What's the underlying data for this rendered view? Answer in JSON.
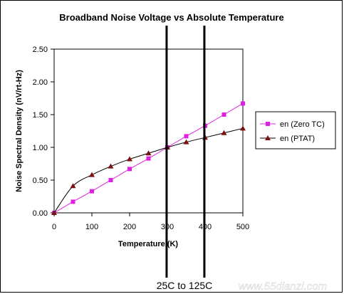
{
  "chart_data": {
    "type": "line",
    "title": "Broadband Noise Voltage vs Absolute Temperature",
    "xlabel": "Temperature (K)",
    "ylabel": "Noise Spectral Density (nV/rt-Hz)",
    "xlim": [
      0,
      500
    ],
    "ylim": [
      0,
      2.5
    ],
    "x_ticks": [
      "0",
      "100",
      "200",
      "300",
      "400",
      "500"
    ],
    "y_ticks": [
      "0.00",
      "0.50",
      "1.00",
      "1.50",
      "2.00",
      "2.50"
    ],
    "grid": false,
    "legend_position": "right",
    "series": [
      {
        "name": "en (Zero TC)",
        "color": "#e020e0",
        "marker": "square",
        "x": [
          0,
          50,
          100,
          150,
          200,
          250,
          300,
          350,
          400,
          450,
          500
        ],
        "y": [
          0.0,
          0.17,
          0.33,
          0.5,
          0.67,
          0.83,
          1.0,
          1.17,
          1.33,
          1.5,
          1.67
        ]
      },
      {
        "name": "en (PTAT)",
        "color": "#000000",
        "marker_color": "#7a1010",
        "marker": "triangle",
        "x": [
          0,
          50,
          100,
          150,
          200,
          250,
          300,
          350,
          400,
          450,
          500
        ],
        "y": [
          0.0,
          0.41,
          0.58,
          0.71,
          0.82,
          0.91,
          1.0,
          1.08,
          1.15,
          1.22,
          1.29
        ]
      }
    ],
    "annotation": "25C to 125C",
    "annotation_lines_x": [
      298,
      398
    ]
  },
  "watermark": "www.55dianzi.com"
}
